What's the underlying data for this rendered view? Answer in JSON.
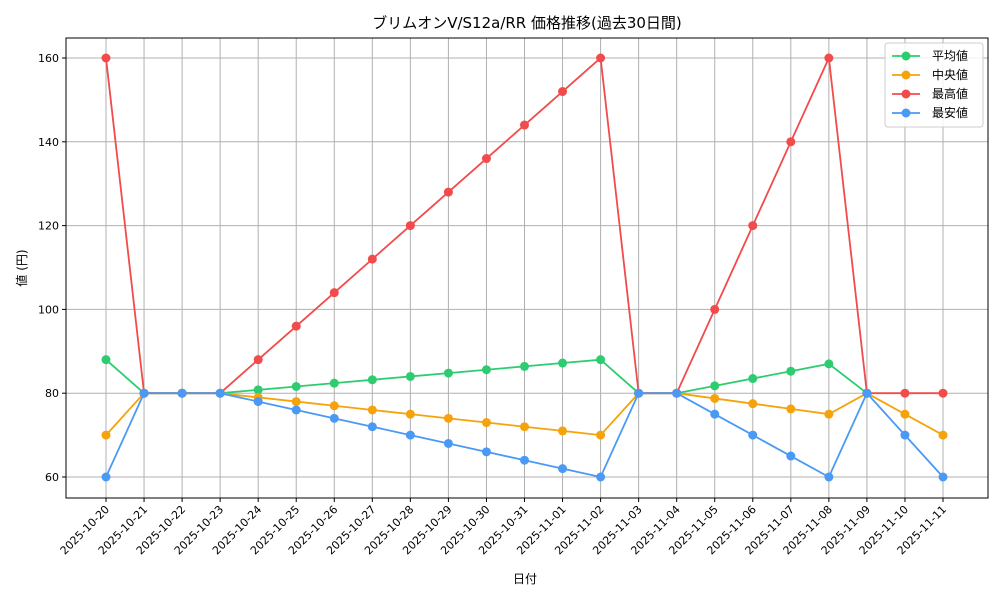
{
  "chart_data": {
    "type": "line",
    "title": "ブリムオンV/S12a/RR 価格推移(過去30日間)",
    "xlabel": "日付",
    "ylabel": "値 (円)",
    "ylim": [
      55,
      165
    ],
    "yticks": [
      60,
      80,
      100,
      120,
      140,
      160
    ],
    "grid": true,
    "legend_position": "upper right",
    "categories": [
      "2025-10-20",
      "2025-10-21",
      "2025-10-22",
      "2025-10-23",
      "2025-10-24",
      "2025-10-25",
      "2025-10-26",
      "2025-10-27",
      "2025-10-28",
      "2025-10-29",
      "2025-10-30",
      "2025-10-31",
      "2025-11-01",
      "2025-11-02",
      "2025-11-03",
      "2025-11-04",
      "2025-11-05",
      "2025-11-06",
      "2025-11-07",
      "2025-11-08",
      "2025-11-09",
      "2025-11-10",
      "2025-11-11"
    ],
    "series": [
      {
        "name": "平均値",
        "color": "#2ecc71",
        "values": [
          88,
          80,
          80,
          80,
          80.8,
          81.6,
          82.4,
          83.2,
          84.0,
          84.8,
          85.6,
          86.4,
          87.2,
          88,
          80,
          80,
          81.75,
          83.5,
          85.25,
          87,
          80,
          null,
          null
        ]
      },
      {
        "name": "中央値",
        "color": "#f5a30a",
        "values": [
          70,
          80,
          80,
          80,
          79,
          78,
          77,
          76,
          75,
          74,
          73,
          72,
          71,
          70,
          80,
          80,
          78.75,
          77.5,
          76.25,
          75,
          80,
          75,
          70
        ]
      },
      {
        "name": "最高値",
        "color": "#f24b4b",
        "values": [
          160,
          80,
          80,
          80,
          88,
          96,
          104,
          112,
          120,
          128,
          136,
          144,
          152,
          160,
          80,
          80,
          100,
          120,
          140,
          160,
          80,
          80,
          80
        ]
      },
      {
        "name": "最安値",
        "color": "#4a9af5",
        "values": [
          60,
          80,
          80,
          80,
          78,
          76,
          74,
          72,
          70,
          68,
          66,
          64,
          62,
          60,
          80,
          80,
          75,
          70,
          65,
          60,
          80,
          70,
          60
        ]
      }
    ]
  }
}
